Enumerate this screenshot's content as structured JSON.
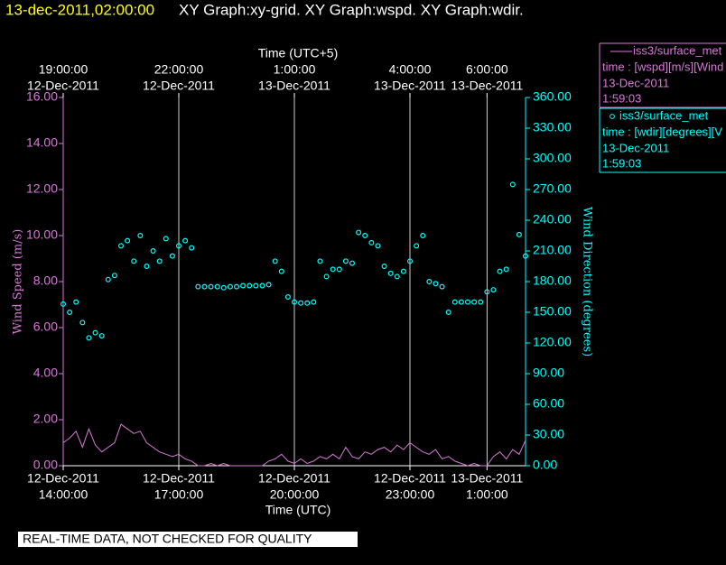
{
  "chart_data": {
    "type": "line+scatter",
    "title_time": "13-dec-2011,02:00:00",
    "title": "XY Graph:xy-grid.  XY Graph:wspd.  XY Graph:wdir.",
    "x_label": "Time (UTC)",
    "x2_label": "Time (UTC+5)",
    "y_label": "Wind Speed (m/s)",
    "y2_label": "Wind Direction (degrees)",
    "footer": "REAL-TIME DATA, NOT CHECKED FOR QUALITY",
    "grid": true,
    "xlim": [
      "2011-12-12T14:00",
      "2011-12-13T02:00"
    ],
    "xticks": [
      {
        "value": "2011-12-12T14:00",
        "label": [
          "12-Dec-2011",
          "14:00:00"
        ]
      },
      {
        "value": "2011-12-12T17:00",
        "label": [
          "12-Dec-2011",
          "17:00:00"
        ]
      },
      {
        "value": "2011-12-12T20:00",
        "label": [
          "12-Dec-2011",
          "20:00:00"
        ]
      },
      {
        "value": "2011-12-12T23:00",
        "label": [
          "12-Dec-2011",
          "23:00:00"
        ]
      },
      {
        "value": "2011-12-13T01:00",
        "label": [
          "13-Dec-2011",
          "1:00:00"
        ]
      }
    ],
    "x2lim": [
      "2011-12-12T19:00",
      "2011-12-13T07:00"
    ],
    "x2ticks": [
      {
        "value": "2011-12-12T19:00",
        "label": [
          "19:00:00",
          "12-Dec-2011"
        ]
      },
      {
        "value": "2011-12-12T22:00",
        "label": [
          "22:00:00",
          "12-Dec-2011"
        ]
      },
      {
        "value": "2011-12-13T01:00",
        "label": [
          "1:00:00",
          "13-Dec-2011"
        ]
      },
      {
        "value": "2011-12-13T04:00",
        "label": [
          "4:00:00",
          "13-Dec-2011"
        ]
      },
      {
        "value": "2011-12-13T06:00",
        "label": [
          "6:00:00",
          "13-Dec-2011"
        ]
      }
    ],
    "ylim": [
      0,
      16
    ],
    "yticks": [
      {
        "value": 0,
        "label": "0.00"
      },
      {
        "value": 2,
        "label": "2.00"
      },
      {
        "value": 4,
        "label": "4.00"
      },
      {
        "value": 6,
        "label": "6.00"
      },
      {
        "value": 8,
        "label": "8.00"
      },
      {
        "value": 10,
        "label": "10.00"
      },
      {
        "value": 12,
        "label": "12.00"
      },
      {
        "value": 14,
        "label": "14.00"
      },
      {
        "value": 16,
        "label": "16.00"
      }
    ],
    "y2lim": [
      0,
      360
    ],
    "y2ticks": [
      {
        "value": 0,
        "label": "0.00"
      },
      {
        "value": 30,
        "label": "30.00"
      },
      {
        "value": 60,
        "label": "60.00"
      },
      {
        "value": 90,
        "label": "90.00"
      },
      {
        "value": 120,
        "label": "120.00"
      },
      {
        "value": 150,
        "label": "150.00"
      },
      {
        "value": 180,
        "label": "180.00"
      },
      {
        "value": 210,
        "label": "210.00"
      },
      {
        "value": 240,
        "label": "240.00"
      },
      {
        "value": 270,
        "label": "270.00"
      },
      {
        "value": 300,
        "label": "300.00"
      },
      {
        "value": 330,
        "label": "330.00"
      },
      {
        "value": 360,
        "label": "360.00"
      }
    ],
    "x": [
      "2011-12-12T14:00",
      "2011-12-12T14:10",
      "2011-12-12T14:20",
      "2011-12-12T14:30",
      "2011-12-12T14:40",
      "2011-12-12T14:50",
      "2011-12-12T15:00",
      "2011-12-12T15:10",
      "2011-12-12T15:20",
      "2011-12-12T15:30",
      "2011-12-12T15:40",
      "2011-12-12T15:50",
      "2011-12-12T16:00",
      "2011-12-12T16:10",
      "2011-12-12T16:20",
      "2011-12-12T16:30",
      "2011-12-12T16:40",
      "2011-12-12T16:50",
      "2011-12-12T17:00",
      "2011-12-12T17:10",
      "2011-12-12T17:20",
      "2011-12-12T17:30",
      "2011-12-12T17:40",
      "2011-12-12T17:50",
      "2011-12-12T18:00",
      "2011-12-12T18:10",
      "2011-12-12T18:20",
      "2011-12-12T18:30",
      "2011-12-12T18:40",
      "2011-12-12T18:50",
      "2011-12-12T19:00",
      "2011-12-12T19:10",
      "2011-12-12T19:20",
      "2011-12-12T19:30",
      "2011-12-12T19:40",
      "2011-12-12T19:50",
      "2011-12-12T20:00",
      "2011-12-12T20:10",
      "2011-12-12T20:20",
      "2011-12-12T20:30",
      "2011-12-12T20:40",
      "2011-12-12T20:50",
      "2011-12-12T21:00",
      "2011-12-12T21:10",
      "2011-12-12T21:20",
      "2011-12-12T21:30",
      "2011-12-12T21:40",
      "2011-12-12T21:50",
      "2011-12-12T22:00",
      "2011-12-12T22:10",
      "2011-12-12T22:20",
      "2011-12-12T22:30",
      "2011-12-12T22:40",
      "2011-12-12T22:50",
      "2011-12-12T23:00",
      "2011-12-12T23:10",
      "2011-12-12T23:20",
      "2011-12-12T23:30",
      "2011-12-12T23:40",
      "2011-12-12T23:50",
      "2011-12-13T00:00",
      "2011-12-13T00:10",
      "2011-12-13T00:20",
      "2011-12-13T00:30",
      "2011-12-13T00:40",
      "2011-12-13T00:50",
      "2011-12-13T01:00",
      "2011-12-13T01:10",
      "2011-12-13T01:20",
      "2011-12-13T01:30",
      "2011-12-13T01:40",
      "2011-12-13T01:50",
      "2011-12-13T02:00"
    ],
    "series": [
      {
        "name": "iss3/surface_met",
        "type": "line",
        "color": "#d878d8",
        "legend_text": "time : [wspd][m/s][Wind",
        "legend_date": "13-Dec-2011",
        "legend_time": "1:59:03",
        "values": [
          1.0,
          1.2,
          1.5,
          0.8,
          1.6,
          0.9,
          0.6,
          0.8,
          1.0,
          1.8,
          1.6,
          1.4,
          1.5,
          1.0,
          0.8,
          0.6,
          0.5,
          0.4,
          0.5,
          0.3,
          0.2,
          0,
          0,
          0.1,
          0,
          0.1,
          0,
          0,
          0,
          0,
          0,
          0,
          0.2,
          0.3,
          0.5,
          0.2,
          0.1,
          0.3,
          0.1,
          0.2,
          0.4,
          0.3,
          0.5,
          0.3,
          0.8,
          0.4,
          0.3,
          0.6,
          0.5,
          0.7,
          0.8,
          0.6,
          0.9,
          0.7,
          1.0,
          0.8,
          0.6,
          0.5,
          0.7,
          0.3,
          0.4,
          0.2,
          0.1,
          0,
          0.1,
          0,
          0,
          0.4,
          0.6,
          0.3,
          0.7,
          0.5,
          1.1
        ]
      },
      {
        "name": "iss3/surface_met",
        "type": "scatter",
        "axis": "y2",
        "color": "#00ffff",
        "legend_text": "time : [wdir][degrees][V",
        "legend_date": "13-Dec-2011",
        "legend_time": "1:59:03",
        "values": [
          158,
          150,
          160,
          140,
          125,
          130,
          127,
          182,
          186,
          215,
          220,
          200,
          225,
          195,
          210,
          200,
          222,
          205,
          215,
          220,
          213,
          175,
          175,
          175,
          175,
          174,
          175,
          175,
          176,
          176,
          176,
          176,
          177,
          200,
          190,
          165,
          160,
          159,
          159,
          160,
          200,
          185,
          192,
          192,
          200,
          198,
          228,
          225,
          218,
          215,
          195,
          188,
          185,
          190,
          200,
          215,
          225,
          180,
          178,
          175,
          150,
          160,
          160,
          160,
          160,
          160,
          170,
          172,
          190,
          192,
          275,
          226,
          205
        ]
      }
    ]
  }
}
